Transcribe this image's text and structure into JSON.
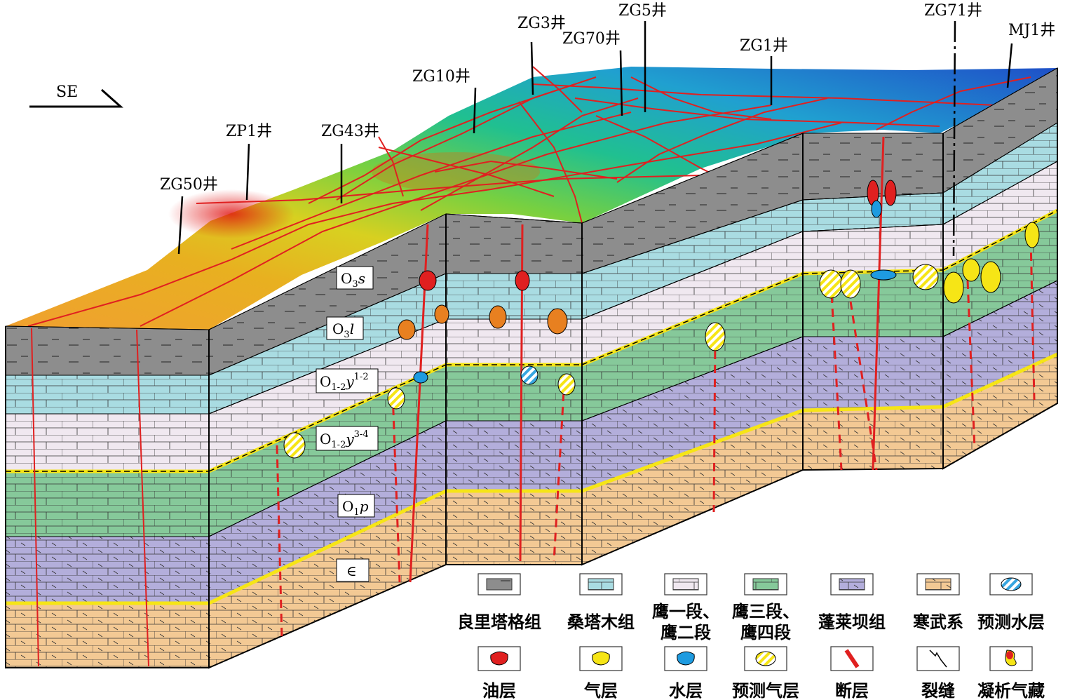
{
  "direction": {
    "label": "SE"
  },
  "wells": [
    {
      "id": "w-zg50",
      "label": "ZG50井"
    },
    {
      "id": "w-zp1",
      "label": "ZP1井"
    },
    {
      "id": "w-zg43",
      "label": "ZG43井"
    },
    {
      "id": "w-zg10",
      "label": "ZG10井"
    },
    {
      "id": "w-zg3",
      "label": "ZG3井"
    },
    {
      "id": "w-zg70",
      "label": "ZG70井"
    },
    {
      "id": "w-zg5",
      "label": "ZG5井"
    },
    {
      "id": "w-zg1",
      "label": "ZG1井"
    },
    {
      "id": "w-zg71",
      "label": "ZG71井"
    },
    {
      "id": "w-mj1",
      "label": "MJ1井"
    }
  ],
  "strata_labels": [
    {
      "id": "s-o3s",
      "main": "O",
      "sub": "3",
      "ital": "s",
      "sup": ""
    },
    {
      "id": "s-o3l",
      "main": "O",
      "sub": "3",
      "ital": "l",
      "sup": ""
    },
    {
      "id": "s-o12y12",
      "main": "O",
      "sub": "1-2",
      "ital": "y",
      "sup": "1-2"
    },
    {
      "id": "s-o12y34",
      "main": "O",
      "sub": "1-2",
      "ital": "y",
      "sup": "3-4"
    },
    {
      "id": "s-o1p",
      "main": "O",
      "sub": "1",
      "ital": "p",
      "sup": ""
    },
    {
      "id": "s-cam",
      "main": "∈",
      "sub": "",
      "ital": "",
      "sup": ""
    }
  ],
  "legend": {
    "row1": [
      {
        "key": "lianglitage",
        "label": [
          "良里塔格组"
        ],
        "color": "#8d8d8d"
      },
      {
        "key": "sangtamu",
        "label": [
          "桑塔木组"
        ],
        "color": "#a9dce2"
      },
      {
        "key": "ying12",
        "label": [
          "鹰一段、",
          "鹰二段"
        ],
        "color": "#f0e8f0"
      },
      {
        "key": "ying34",
        "label": [
          "鹰三段、",
          "鹰四段"
        ],
        "color": "#86c99a"
      },
      {
        "key": "penglaiba",
        "label": [
          "蓬莱坝组"
        ],
        "color": "#b3aedb"
      },
      {
        "key": "hanwu",
        "label": [
          "寒武系"
        ],
        "color": "#f3c994"
      },
      {
        "key": "pred-water",
        "label": [
          "预测水层"
        ],
        "color": "#37a6e0"
      }
    ],
    "row2": [
      {
        "key": "oil",
        "label": [
          "油层"
        ],
        "color": "#e02020"
      },
      {
        "key": "gas",
        "label": [
          "气层"
        ],
        "color": "#f6e516"
      },
      {
        "key": "water",
        "label": [
          "水层"
        ],
        "color": "#1e9be0"
      },
      {
        "key": "pred-gas",
        "label": [
          "预测气层"
        ],
        "color": "#f6e516"
      },
      {
        "key": "fault",
        "label": [
          "断层"
        ],
        "color": "#e02020"
      },
      {
        "key": "fracture",
        "label": [
          "裂缝"
        ],
        "color": "#000000"
      },
      {
        "key": "condensate",
        "label": [
          "凝析气藏"
        ],
        "color": "#e02020"
      }
    ]
  },
  "colors": {
    "gray": "#8d8d8d",
    "cyan": "#a9dce2",
    "pink": "#f0e8f0",
    "green": "#86c99a",
    "purple": "#b3aedb",
    "tan": "#f3c994",
    "fault": "#e02020",
    "gas": "#f6e516"
  }
}
